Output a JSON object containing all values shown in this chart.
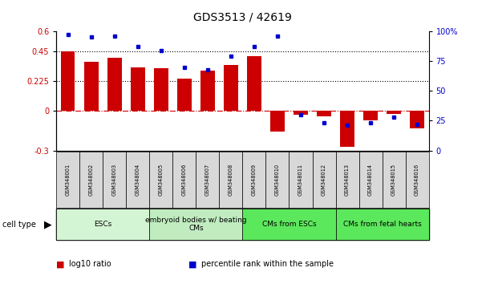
{
  "title": "GDS3513 / 42619",
  "samples": [
    "GSM348001",
    "GSM348002",
    "GSM348003",
    "GSM348004",
    "GSM348005",
    "GSM348006",
    "GSM348007",
    "GSM348008",
    "GSM348009",
    "GSM348010",
    "GSM348011",
    "GSM348012",
    "GSM348013",
    "GSM348014",
    "GSM348015",
    "GSM348016"
  ],
  "log10_ratio": [
    0.45,
    0.37,
    0.4,
    0.33,
    0.32,
    0.245,
    0.305,
    0.345,
    0.41,
    -0.155,
    -0.03,
    -0.04,
    -0.275,
    -0.07,
    -0.025,
    -0.135
  ],
  "percentile_rank": [
    97,
    95,
    96,
    87,
    84,
    70,
    68,
    79,
    87,
    96,
    30,
    23,
    21,
    23,
    28,
    22
  ],
  "ylim_left": [
    -0.3,
    0.6
  ],
  "ylim_right": [
    0,
    100
  ],
  "yticks_left": [
    -0.3,
    0,
    0.225,
    0.45,
    0.6
  ],
  "ytick_labels_left": [
    "-0.3",
    "0",
    "0.225",
    "0.45",
    "0.6"
  ],
  "yticks_right": [
    0,
    25,
    50,
    75,
    100
  ],
  "ytick_labels_right": [
    "0",
    "25",
    "50",
    "75",
    "100%"
  ],
  "hlines": [
    0.225,
    0.45
  ],
  "cell_type_groups": [
    {
      "label": "ESCs",
      "start": 0,
      "end": 3,
      "color": "#d4f5d4"
    },
    {
      "label": "embryoid bodies w/ beating\nCMs",
      "start": 4,
      "end": 7,
      "color": "#c0ecc0"
    },
    {
      "label": "CMs from ESCs",
      "start": 8,
      "end": 11,
      "color": "#5ce85c"
    },
    {
      "label": "CMs from fetal hearts",
      "start": 12,
      "end": 15,
      "color": "#5ce85c"
    }
  ],
  "bar_color": "#cc0000",
  "dot_color": "#0000cc",
  "zero_line_color": "#cc0000",
  "background_color": "#ffffff",
  "plot_bg_color": "#ffffff",
  "xtick_box_color": "#d8d8d8",
  "legend_items": [
    {
      "color": "#cc0000",
      "label": "log10 ratio"
    },
    {
      "color": "#0000cc",
      "label": "percentile rank within the sample"
    }
  ]
}
